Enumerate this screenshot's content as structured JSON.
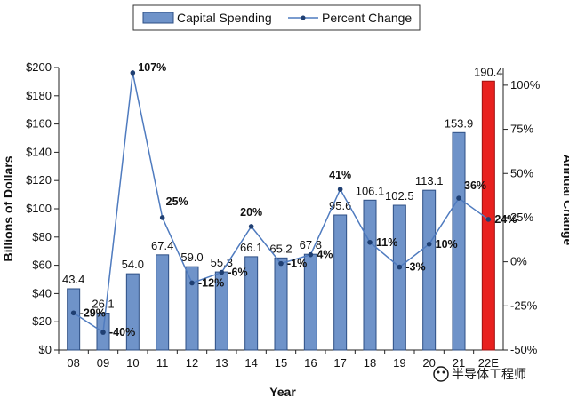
{
  "chart_data": {
    "type": "bar",
    "xlabel": "Year",
    "ylabel": "Billions of Dollars",
    "y2label": "Annual Change",
    "categories": [
      "08",
      "09",
      "10",
      "11",
      "12",
      "13",
      "14",
      "15",
      "16",
      "17",
      "18",
      "19",
      "20",
      "21",
      "22E"
    ],
    "ylim": [
      0,
      200
    ],
    "yticks": [
      "$0",
      "$20",
      "$40",
      "$60",
      "$80",
      "$100",
      "$120",
      "$140",
      "$160",
      "$180",
      "$200"
    ],
    "y2lim": [
      -50,
      110
    ],
    "y2ticks": [
      "-50%",
      "-25%",
      "0%",
      "25%",
      "50%",
      "75%",
      "100%"
    ],
    "series": [
      {
        "name": "Capital Spending",
        "type": "bar",
        "color": "#6f93c9",
        "highlight_color": "#e8211f",
        "values": [
          43.4,
          26.1,
          54.0,
          67.4,
          59.0,
          55.3,
          66.1,
          65.2,
          67.8,
          95.6,
          106.1,
          102.5,
          113.1,
          153.9,
          190.4
        ],
        "labels": [
          "43.4",
          "26.1",
          "54.0",
          "67.4",
          "59.0",
          "55.3",
          "66.1",
          "65.2",
          "67.8",
          "95.6",
          "106.1",
          "102.5",
          "113.1",
          "153.9",
          "190.4"
        ]
      },
      {
        "name": "Percent Change",
        "type": "line",
        "axis": "right",
        "color": "#4f7bbf",
        "values": [
          -29,
          -40,
          107,
          25,
          -12,
          -6,
          20,
          -1,
          4,
          41,
          11,
          -3,
          10,
          36,
          24
        ],
        "labels": [
          "-29%",
          "-40%",
          "107%",
          "25%",
          "-12%",
          "-6%",
          "20%",
          "-1%",
          "4%",
          "41%",
          "11%",
          "-3%",
          "10%",
          "36%",
          "24%"
        ]
      }
    ],
    "legend": {
      "position": "top",
      "items": [
        "Capital Spending",
        "Percent Change"
      ]
    },
    "grid": false
  },
  "watermark": "半导体工程师"
}
